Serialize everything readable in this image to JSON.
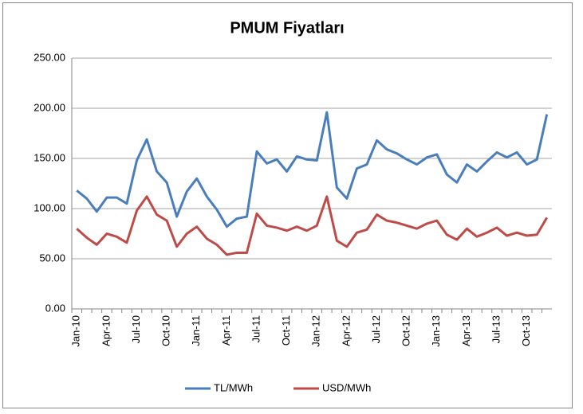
{
  "chart_data": {
    "type": "line",
    "title": "PMUM Fiyatları",
    "categories": [
      "Jan-10",
      null,
      null,
      "Apr-10",
      null,
      null,
      "Jul-10",
      null,
      null,
      "Oct-10",
      null,
      null,
      "Jan-11",
      null,
      null,
      "Apr-11",
      null,
      null,
      "Jul-11",
      null,
      null,
      "Oct-11",
      null,
      null,
      "Jan-12",
      null,
      null,
      "Apr-12",
      null,
      null,
      "Jul-12",
      null,
      null,
      "Oct-12",
      null,
      null,
      "Jan-13",
      null,
      null,
      "Apr-13",
      null,
      null,
      "Jul-13",
      null,
      null,
      "Oct-13",
      null,
      null
    ],
    "series": [
      {
        "name": "TL/MWh",
        "color": "#4a7ebb",
        "values": [
          118,
          110,
          97,
          111,
          111,
          105,
          148,
          169,
          137,
          126,
          92,
          117,
          130,
          112,
          99,
          82,
          90,
          92,
          157,
          145,
          149,
          137,
          152,
          149,
          148,
          196,
          121,
          110,
          140,
          144,
          168,
          159,
          155,
          149,
          144,
          151,
          154,
          134,
          126,
          144,
          137,
          147,
          156,
          151,
          156,
          144,
          149,
          194
        ]
      },
      {
        "name": "USD/MWh",
        "color": "#be4b48",
        "values": [
          80,
          71,
          64,
          75,
          72,
          66,
          98,
          112,
          94,
          88,
          62,
          75,
          82,
          70,
          64,
          54,
          56,
          56,
          95,
          83,
          81,
          78,
          82,
          78,
          83,
          112,
          68,
          62,
          76,
          79,
          94,
          88,
          86,
          83,
          80,
          85,
          88,
          74,
          69,
          80,
          72,
          76,
          81,
          73,
          76,
          73,
          74,
          91
        ]
      }
    ],
    "ylim": [
      0,
      250
    ],
    "yticks": [
      {
        "value": 0,
        "label": "0.00"
      },
      {
        "value": 50,
        "label": "50.00"
      },
      {
        "value": 100,
        "label": "100.00"
      },
      {
        "value": 150,
        "label": "150.00"
      },
      {
        "value": 200,
        "label": "200.00"
      },
      {
        "value": 250,
        "label": "250.00"
      }
    ],
    "grid": true,
    "legend": "bottom"
  }
}
